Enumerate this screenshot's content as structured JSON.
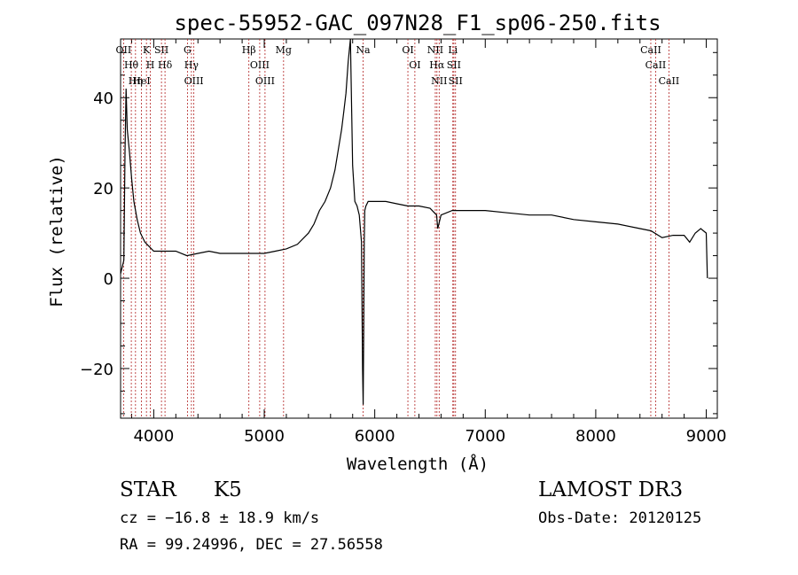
{
  "chart_data": {
    "type": "line",
    "title": "spec-55952-GAC_097N28_F1_sp06-250.fits",
    "xlabel": "Wavelength (Å)",
    "ylabel": "Flux (relative)",
    "xlim": [
      3700,
      9100
    ],
    "ylim": [
      -31,
      53
    ],
    "xticks": [
      4000,
      5000,
      6000,
      7000,
      8000,
      9000
    ],
    "yticks": [
      -20,
      0,
      20,
      40
    ],
    "grid": false,
    "series": [
      {
        "name": "flux",
        "x": [
          3700,
          3730,
          3740,
          3750,
          3760,
          3780,
          3800,
          3820,
          3850,
          3880,
          3920,
          3960,
          4000,
          4050,
          4100,
          4200,
          4300,
          4400,
          4500,
          4600,
          4700,
          4800,
          4900,
          5000,
          5100,
          5200,
          5300,
          5400,
          5450,
          5500,
          5550,
          5600,
          5640,
          5680,
          5700,
          5720,
          5740,
          5760,
          5780,
          5800,
          5820,
          5840,
          5860,
          5880,
          5890,
          5895,
          5900,
          5905,
          5910,
          5920,
          5940,
          5970,
          6000,
          6100,
          6200,
          6300,
          6400,
          6500,
          6560,
          6570,
          6600,
          6700,
          6800,
          6900,
          7000,
          7200,
          7400,
          7600,
          7800,
          8000,
          8200,
          8400,
          8500,
          8600,
          8700,
          8800,
          8850,
          8900,
          8950,
          9000,
          9010
        ],
        "y": [
          1,
          4,
          28,
          42,
          33,
          28,
          22,
          17,
          13,
          10,
          8,
          7,
          6,
          6,
          6,
          6,
          5,
          5.5,
          6,
          5.5,
          5.5,
          5.5,
          5.5,
          5.5,
          6,
          6.5,
          7.5,
          10,
          12,
          15,
          17,
          20,
          24,
          30,
          33,
          37,
          41,
          48,
          53,
          25,
          17,
          16,
          14,
          8,
          -20,
          -28,
          -12,
          8,
          15,
          16,
          17,
          17,
          17,
          17,
          16.5,
          16,
          16,
          15.5,
          14,
          11,
          14,
          15,
          15,
          15,
          15,
          14.5,
          14,
          14,
          13,
          12.5,
          12,
          11,
          10.5,
          9,
          9.5,
          9.5,
          8,
          10,
          11,
          10,
          0
        ]
      }
    ],
    "lines": [
      {
        "label": "OII",
        "x": 3727
      },
      {
        "label": "Hθ",
        "x": 3797
      },
      {
        "label": "Hη",
        "x": 3835
      },
      {
        "label": "HeI",
        "x": 3889
      },
      {
        "label": "K",
        "x": 3934
      },
      {
        "label": "H",
        "x": 3969
      },
      {
        "label": "SII",
        "x": 4070
      },
      {
        "label": "Hδ",
        "x": 4102
      },
      {
        "label": "G",
        "x": 4305
      },
      {
        "label": "Hγ",
        "x": 4341
      },
      {
        "label": "OIII",
        "x": 4363
      },
      {
        "label": "Hβ",
        "x": 4861
      },
      {
        "label": "OIII",
        "x": 4959
      },
      {
        "label": "OIII",
        "x": 5007
      },
      {
        "label": "Mg",
        "x": 5175
      },
      {
        "label": "Na",
        "x": 5894
      },
      {
        "label": "OI",
        "x": 6300
      },
      {
        "label": "OI",
        "x": 6363
      },
      {
        "label": "NII",
        "x": 6548
      },
      {
        "label": "Hα",
        "x": 6563
      },
      {
        "label": "NII",
        "x": 6583
      },
      {
        "label": "Li",
        "x": 6707
      },
      {
        "label": "SII",
        "x": 6716
      },
      {
        "label": "SII",
        "x": 6731
      },
      {
        "label": "CaII",
        "x": 8498
      },
      {
        "label": "CaII",
        "x": 8542
      },
      {
        "label": "CaII",
        "x": 8662
      }
    ]
  },
  "colors": {
    "spectrum": "#000000",
    "lines": "#b22222",
    "axes": "#000000"
  },
  "info": {
    "class": "STAR",
    "subclass": "K5",
    "survey": "LAMOST DR3",
    "cz": "cz = −16.8 ± 18.9 km/s",
    "obsdate": "Obs-Date: 20120125",
    "radec": "RA =  99.24996, DEC =  27.56558"
  }
}
